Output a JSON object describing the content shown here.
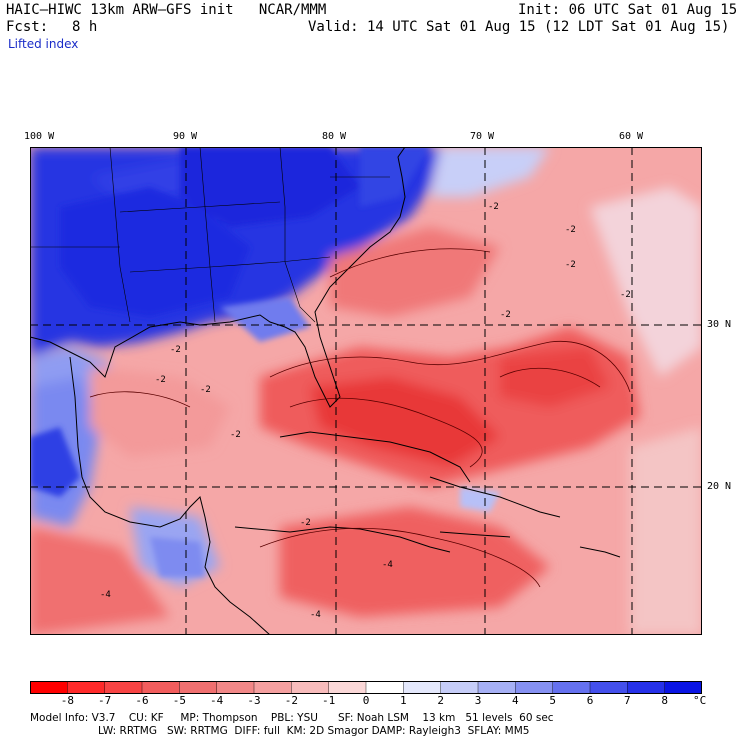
{
  "header": {
    "title": "HAIC–HIWC 13km ARW–GFS init   NCAR/MMM",
    "init": "Init: 06 UTC Sat 01 Aug 15",
    "fcst_label": "Fcst:",
    "fcst_value": "8 h",
    "valid": "Valid: 14 UTC Sat 01 Aug 15 (12 LDT Sat 01 Aug 15)",
    "field": "Lifted index"
  },
  "map": {
    "lon_labels": [
      "100 W",
      "90 W",
      "80 W",
      "70 W",
      "60 W"
    ],
    "lat_labels": [
      "30 N",
      "20 N"
    ],
    "contour_labels": [
      "-2",
      "-2",
      "-2",
      "-2",
      "-2",
      "-2",
      "-2",
      "-2",
      "-4",
      "-4",
      "-4",
      "-2",
      "-2"
    ],
    "colors": {
      "strong_blue": "#1c2be0",
      "mid_blue": "#5b6ef0",
      "light_blue": "#b9c2f7",
      "light_red": "#f7b2b2",
      "mid_red": "#f27676",
      "strong_red": "#ec4a4a"
    }
  },
  "colorbar": {
    "labels": [
      "-8",
      "-7",
      "-6",
      "-5",
      "-4",
      "-3",
      "-2",
      "-1",
      "0",
      "1",
      "2",
      "3",
      "4",
      "5",
      "6",
      "7",
      "8"
    ],
    "unit": "°C",
    "colors": [
      "#ff0000",
      "#ff2a2a",
      "#f84444",
      "#f25d5d",
      "#f07070",
      "#f28888",
      "#f5a0a0",
      "#f8bcbc",
      "#fbd8d8",
      "#ffffff",
      "#e4e8fc",
      "#c6cdf8",
      "#a6b0f5",
      "#8691f2",
      "#6571ef",
      "#4450ec",
      "#2631e9",
      "#0a14e4"
    ]
  },
  "footer": {
    "line1": "Model Info: V3.7    CU: KF     MP: Thompson    PBL: YSU      SF: Noah LSM    13 km   51 levels  60 sec",
    "line2": "LW: RRTMG   SW: RRTMG  DIFF: full  KM: 2D Smagor DAMP: Rayleigh3  SFLAY: MM5"
  }
}
